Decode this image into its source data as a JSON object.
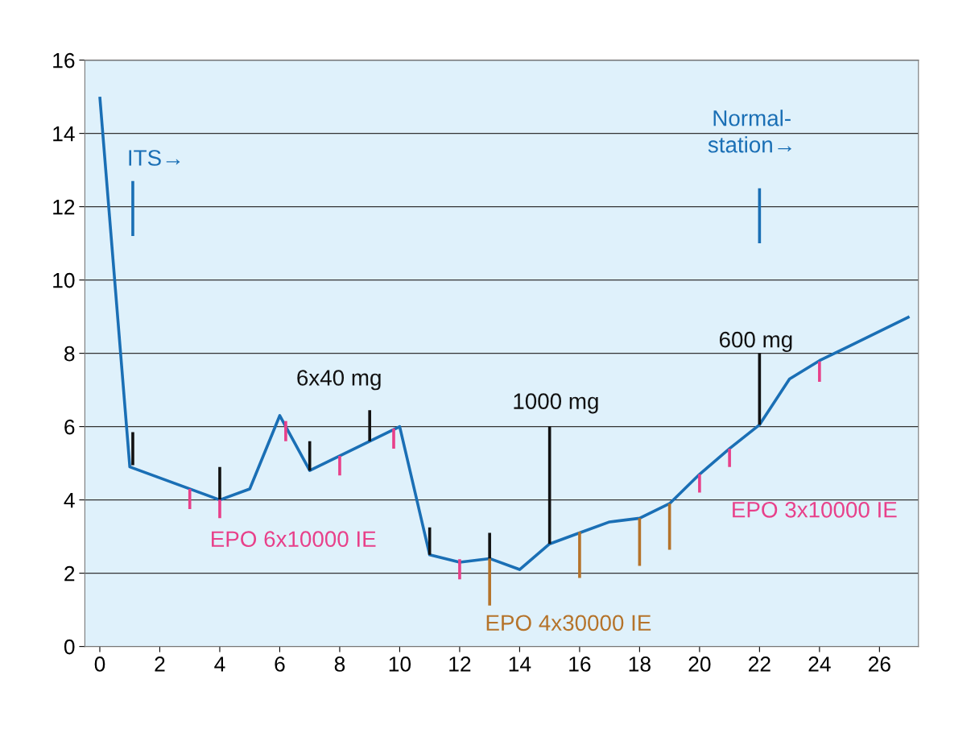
{
  "chart_data": {
    "type": "line",
    "xlim": [
      -0.5,
      27.3
    ],
    "ylim": [
      0,
      16
    ],
    "xticks": [
      0,
      2,
      4,
      6,
      8,
      10,
      12,
      14,
      16,
      18,
      20,
      22,
      24,
      26
    ],
    "yticks": [
      0,
      2,
      4,
      6,
      8,
      10,
      12,
      14,
      16
    ],
    "grid": "y",
    "marker": "none",
    "line_style": "solid",
    "series": [
      {
        "color": "#1a6fb5",
        "x": [
          0,
          1,
          4,
          5,
          6,
          7,
          10,
          11,
          12,
          13,
          14,
          15,
          16,
          17,
          18,
          19,
          20,
          21,
          22,
          23,
          24,
          25,
          27
        ],
        "values": [
          15,
          4.9,
          4.0,
          4.3,
          6.3,
          4.8,
          6.0,
          2.5,
          2.3,
          2.4,
          2.1,
          2.8,
          3.1,
          3.4,
          3.5,
          3.9,
          4.7,
          5.4,
          6.05,
          7.3,
          7.8,
          8.2,
          9.0
        ]
      },
      {
        "color": "#111111",
        "x": [
          1.1,
          1.1,
          null,
          4,
          4,
          null,
          7,
          7,
          null,
          9,
          9,
          null,
          11,
          11,
          null,
          13,
          13,
          null,
          15,
          15,
          null,
          22,
          22
        ],
        "values": [
          4.95,
          5.85,
          null,
          4.0,
          4.9,
          null,
          4.8,
          5.6,
          null,
          5.6,
          6.45,
          null,
          2.5,
          3.25,
          null,
          2.4,
          3.1,
          null,
          2.8,
          6.0,
          null,
          6.05,
          8.0
        ]
      },
      {
        "color": "#e8408a",
        "x": [
          3,
          3,
          null,
          4,
          4,
          null,
          6.2,
          6.2,
          null,
          8,
          8,
          null,
          9.8,
          9.8,
          null,
          12,
          12,
          null,
          20,
          20,
          null,
          21,
          21,
          null,
          24,
          24
        ],
        "values": [
          3.75,
          4.3,
          null,
          3.5,
          4.0,
          null,
          5.6,
          6.15,
          null,
          4.67,
          5.2,
          null,
          5.4,
          5.95,
          null,
          1.83,
          2.38,
          null,
          4.2,
          4.7,
          null,
          4.9,
          5.4,
          null,
          7.22,
          7.78
        ]
      },
      {
        "color": "#b5732a",
        "x": [
          13,
          13,
          null,
          16,
          16,
          null,
          18,
          18,
          null,
          19,
          19
        ],
        "values": [
          1.12,
          2.4,
          null,
          1.87,
          3.13,
          null,
          2.2,
          3.5,
          null,
          2.64,
          3.9
        ]
      },
      {
        "color": "#1a6fb5",
        "x": [
          1.1,
          1.1,
          null,
          22,
          22
        ],
        "values": [
          11.2,
          12.7,
          null,
          11.0,
          12.5
        ]
      }
    ],
    "annotations": [
      "ITS→",
      "Normal-\nstation→",
      "6x40 mg",
      "1000 mg",
      "600 mg",
      "EPO 6x10000 IE",
      "EPO 3x10000 IE",
      "EPO 4x30000 IE"
    ]
  }
}
